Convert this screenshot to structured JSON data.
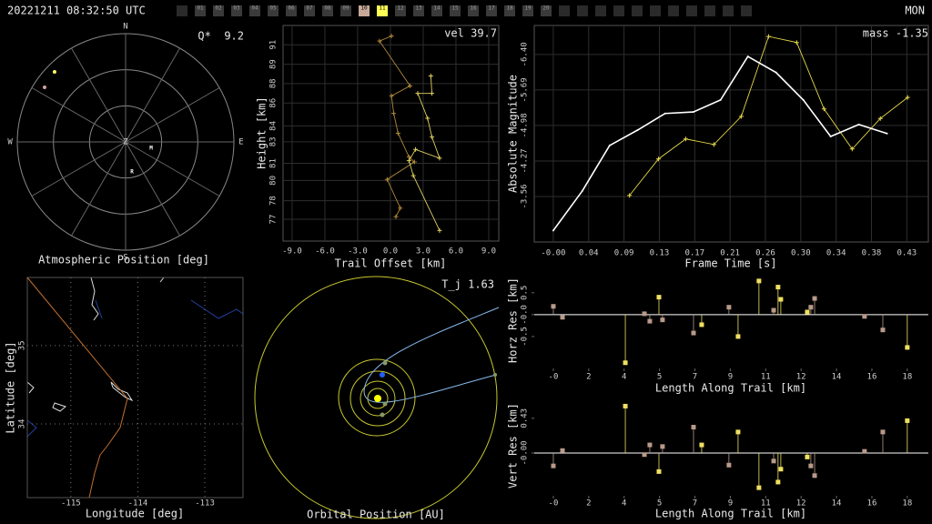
{
  "header": {
    "timestamp": "20221211 08:32:50 UTC",
    "station": "MON",
    "frames": [
      null,
      "01",
      "02",
      "03",
      "04",
      "05",
      "06",
      "07",
      "08",
      "09",
      "10",
      "11",
      "12",
      "13",
      "14",
      "15",
      "16",
      "17",
      "18",
      "19",
      "20",
      null,
      null,
      null,
      null,
      null,
      null,
      null,
      null,
      null,
      null,
      null
    ],
    "frame_colors": [
      "#2a2a2a",
      "#3a3a3a",
      "#3a3a3a",
      "#3a3a3a",
      "#3a3a3a",
      "#3a3a3a",
      "#3a3a3a",
      "#3a3a3a",
      "#3a3a3a",
      "#3a3a3a",
      "#c8a898",
      "#ffff55",
      "#3a3a3a",
      "#3a3a3a",
      "#3a3a3a",
      "#3a3a3a",
      "#3a3a3a",
      "#3a3a3a",
      "#3a3a3a",
      "#3a3a3a",
      "#3a3a3a",
      "#2a2a2a",
      "#2a2a2a",
      "#2a2a2a",
      "#2a2a2a",
      "#2a2a2a",
      "#2a2a2a",
      "#2a2a2a",
      "#2a2a2a",
      "#2a2a2a",
      "#2a2a2a",
      "#2a2a2a"
    ]
  },
  "chart_data": [
    {
      "type": "polar",
      "xlabel": "Atmospheric Position [deg]",
      "annotation": "Q*  9.2",
      "compass": [
        "N",
        "E",
        "S",
        "W"
      ],
      "zenith": "Z",
      "az_grid": [
        0,
        30,
        60,
        90,
        120,
        150,
        180,
        210,
        240,
        270,
        300,
        330
      ],
      "alt_grid": [
        0,
        30,
        60
      ],
      "points": {
        "az": [
          314.6,
          304
        ],
        "alt": [
          7.1,
          8.8
        ],
        "colors": [
          "#ffff66",
          "#d4a0a0"
        ]
      },
      "markers": [
        {
          "label": "M",
          "az": 104,
          "alt": 68.1
        },
        {
          "label": "R",
          "az": 168,
          "alt": 64.5
        }
      ]
    },
    {
      "type": "line",
      "xlabel": "Trail Offset [km]",
      "ylabel": "Height [km]",
      "annotation": "vel 39.7",
      "grid": true,
      "xlim": [
        -9.83,
        9.92
      ],
      "ylim": [
        75.25,
        92.55
      ],
      "xticks": [
        {
          "value": -9,
          "label": "-9.0"
        },
        {
          "value": -6,
          "label": "-6.0"
        },
        {
          "value": -3,
          "label": "-3.0"
        },
        {
          "value": 0,
          "label": "0.0"
        },
        {
          "value": 3,
          "label": "3.0"
        },
        {
          "value": 6,
          "label": "6.0"
        },
        {
          "value": 9,
          "label": "9.0"
        }
      ],
      "yticks": [
        77,
        {
          "value": 78.49,
          "label": "78"
        },
        {
          "value": 80.11,
          "label": "80"
        },
        {
          "value": 81.49,
          "label": "81"
        },
        {
          "value": 83.22,
          "label": "83"
        },
        {
          "value": 84.49,
          "label": "84"
        },
        {
          "value": 86.33,
          "label": "86"
        },
        {
          "value": 87.89,
          "label": "88"
        },
        {
          "value": 89.44,
          "label": "89"
        },
        91
      ],
      "series": [
        {
          "color": "#b08a3a",
          "marker": "+",
          "x": [
            0.1,
            -1.0,
            1.8,
            0.1,
            0.3,
            0.7,
            1.7,
            2.2,
            -0.3,
            0.9,
            0.5
          ],
          "values": [
            91.7,
            91.3,
            87.7,
            86.9,
            85.5,
            83.9,
            82.0,
            81.6,
            80.2,
            77.9,
            77.2
          ]
        },
        {
          "color": "#e0d060",
          "marker": "+",
          "x": [
            3.7,
            3.8,
            2.5,
            3.4,
            3.8,
            4.5,
            2.3,
            1.7,
            2.1,
            4.5
          ],
          "values": [
            88.5,
            87.1,
            87.1,
            85.1,
            83.6,
            81.9,
            82.6,
            81.7,
            80.5,
            76.1
          ]
        }
      ]
    },
    {
      "type": "line",
      "xlabel": "Frame Time [s]",
      "ylabel": "Absolute Magnitude",
      "annotation": "mass -1.35",
      "grid": true,
      "xlim": [
        -0.023,
        0.453
      ],
      "ylim": [
        -2.65,
        -6.98
      ],
      "xticks": [
        {
          "value": 0,
          "label": "-0.00"
        },
        {
          "value": 0.0427,
          "label": "0.04"
        },
        {
          "value": 0.0854,
          "label": "0.09"
        },
        {
          "value": 0.1281,
          "label": "0.13"
        },
        {
          "value": 0.1708,
          "label": "0.17"
        },
        {
          "value": 0.2135,
          "label": "0.21"
        },
        {
          "value": 0.2562,
          "label": "0.26"
        },
        {
          "value": 0.2989,
          "label": "0.30"
        },
        {
          "value": 0.3416,
          "label": "0.34"
        },
        {
          "value": 0.3843,
          "label": "0.38"
        },
        {
          "value": 0.427,
          "label": "0.43"
        }
      ],
      "yticks": [
        -3.56,
        -4.27,
        -4.98,
        -5.69,
        {
          "value": -6.4,
          "label": "-6.40"
        }
      ],
      "series": [
        {
          "color": "#e6d84a",
          "marker": "+",
          "x": [
            0.092,
            0.127,
            0.16,
            0.194,
            0.227,
            0.26,
            0.294,
            0.327,
            0.361,
            0.395,
            0.428
          ],
          "values": [
            -3.58,
            -4.31,
            -4.71,
            -4.6,
            -5.16,
            -6.76,
            -6.64,
            -5.31,
            -4.51,
            -5.12,
            -5.54
          ]
        },
        {
          "color": "#ffffff",
          "marker": ".",
          "x": [
            0,
            0.035,
            0.068,
            0.102,
            0.135,
            0.169,
            0.202,
            0.235,
            0.269,
            0.302,
            0.335,
            0.369,
            0.403
          ],
          "values": [
            -2.88,
            -3.67,
            -4.58,
            -4.89,
            -5.22,
            -5.25,
            -5.49,
            -6.36,
            -6.04,
            -5.49,
            -4.76,
            -5.0,
            -4.82
          ]
        }
      ]
    },
    {
      "type": "map",
      "xlabel": "Longitude [deg]",
      "ylabel": "Latitude [deg]",
      "grid": true,
      "xlim": [
        -115.65,
        -112.43
      ],
      "ylim": [
        33.06,
        35.87
      ],
      "xticks": [
        -115,
        -114,
        -113
      ],
      "yticks": [
        34,
        35
      ],
      "series": [
        {
          "color": "#c07030",
          "x": [
            -115.65,
            -114.16
          ],
          "values": [
            35.87,
            34.33
          ]
        }
      ]
    },
    {
      "type": "orbit",
      "xlabel": "Orbital Position [AU]",
      "annotation": "T_j 1.63"
    },
    {
      "type": "stem",
      "xlabel": "Length Along Trail [km]",
      "ylabel": "Horz Res [km]",
      "xlim": [
        -0.96,
        18.86
      ],
      "ylim": [
        -1.23,
        0.85
      ],
      "xticks": [
        {
          "value": 0,
          "label": "-0"
        },
        {
          "value": 1.78,
          "label": "2"
        },
        {
          "value": 3.56,
          "label": "4"
        },
        {
          "value": 5.34,
          "label": "5"
        },
        {
          "value": 7.12,
          "label": "7"
        },
        {
          "value": 8.9,
          "label": "9"
        },
        {
          "value": 10.68,
          "label": "11"
        },
        {
          "value": 12.46,
          "label": "12"
        },
        {
          "value": 14.24,
          "label": "14"
        },
        {
          "value": 16.02,
          "label": "16"
        },
        {
          "value": 17.8,
          "label": "18"
        }
      ],
      "yticks": [
        0.5,
        {
          "value": 0,
          "label": "-0.0"
        },
        -0.5
      ],
      "series": [
        {
          "color": "#b89a8a",
          "x": [
            0.0,
            0.46,
            4.58,
            4.85,
            5.49,
            7.05,
            8.83,
            11.08,
            12.95,
            13.14,
            15.65,
            16.57
          ],
          "values": [
            0.19,
            -0.06,
            0.02,
            -0.15,
            -0.12,
            -0.42,
            0.17,
            0.1,
            0.17,
            0.37,
            -0.04,
            -0.35
          ]
        },
        {
          "color": "#f0e060",
          "x": [
            3.62,
            5.31,
            7.46,
            9.29,
            10.34,
            11.3,
            11.44,
            12.77,
            17.8
          ],
          "values": [
            -1.1,
            0.4,
            -0.23,
            -0.5,
            0.77,
            0.63,
            0.35,
            0.06,
            -0.75
          ]
        }
      ]
    },
    {
      "type": "stem",
      "xlabel": "Length Along Trail [km]",
      "ylabel": "Vert Res [km]",
      "xlim": [
        -0.96,
        18.86
      ],
      "ylim": [
        -0.53,
        0.63
      ],
      "xticks": [
        {
          "value": 0,
          "label": "-0"
        },
        {
          "value": 1.78,
          "label": "2"
        },
        {
          "value": 3.56,
          "label": "4"
        },
        {
          "value": 5.34,
          "label": "5"
        },
        {
          "value": 7.12,
          "label": "7"
        },
        {
          "value": 8.9,
          "label": "9"
        },
        {
          "value": 10.68,
          "label": "11"
        },
        {
          "value": 12.46,
          "label": "12"
        },
        {
          "value": 14.24,
          "label": "14"
        },
        {
          "value": 16.02,
          "label": "16"
        },
        {
          "value": 17.8,
          "label": "18"
        }
      ],
      "yticks": [
        0.43,
        {
          "value": 0,
          "label": "-0.00"
        }
      ],
      "series": [
        {
          "color": "#b89a8a",
          "x": [
            0.0,
            0.46,
            4.58,
            4.85,
            5.49,
            7.05,
            8.83,
            11.08,
            12.95,
            13.14,
            15.65,
            16.57
          ],
          "values": [
            -0.16,
            0.03,
            -0.02,
            0.1,
            0.08,
            0.32,
            -0.15,
            -0.1,
            -0.16,
            -0.28,
            0.02,
            0.26
          ]
        },
        {
          "color": "#f0e060",
          "x": [
            3.62,
            5.31,
            7.46,
            9.29,
            10.34,
            11.3,
            11.44,
            12.77,
            17.8
          ],
          "values": [
            0.58,
            -0.23,
            0.1,
            0.26,
            -0.43,
            -0.36,
            -0.2,
            -0.05,
            0.4
          ]
        }
      ]
    }
  ]
}
